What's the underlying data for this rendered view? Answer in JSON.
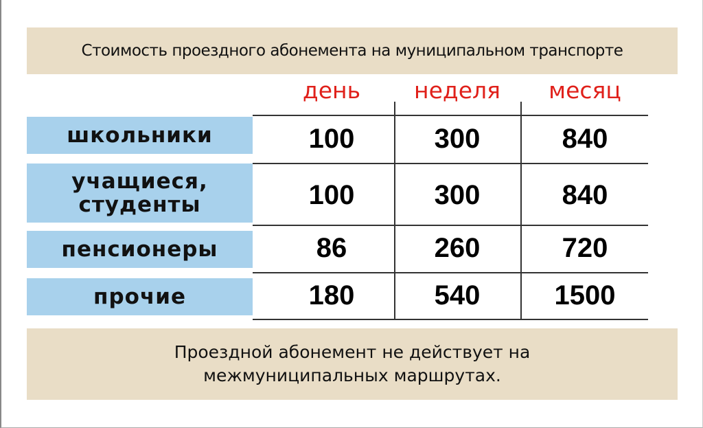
{
  "title": "Стоимость проездного абонемента на муниципальном транспорте",
  "columns": [
    "день",
    "неделя",
    "месяц"
  ],
  "rows": [
    {
      "label": "школьники",
      "values": [
        "100",
        "300",
        "840"
      ]
    },
    {
      "label": "учащиеся,\nстуденты",
      "values": [
        "100",
        "300",
        "840"
      ]
    },
    {
      "label": "пенсионеры",
      "values": [
        "86",
        "260",
        "720"
      ]
    },
    {
      "label": "прочие",
      "values": [
        "180",
        "540",
        "1500"
      ]
    }
  ],
  "note": "Проездной абонемент не действует на межмуниципальных маршрутах.",
  "colors": {
    "header_bg": "#e9ddc6",
    "row_label_bg": "#a8d1ec",
    "column_header": "#e0201a"
  }
}
